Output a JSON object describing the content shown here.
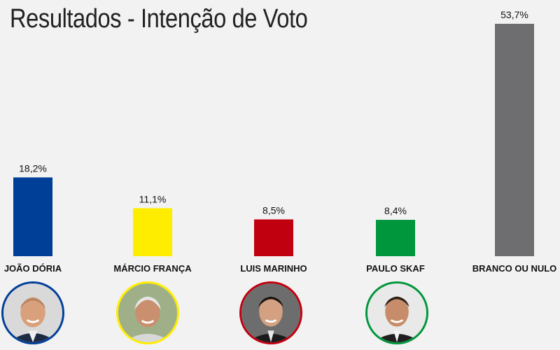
{
  "title": "Resultados - Intenção de Voto",
  "chart_data": {
    "type": "bar",
    "title": "Resultados - Intenção de Voto",
    "categories": [
      "JOÃO DÓRIA",
      "MÁRCIO FRANÇA",
      "LUIS MARINHO",
      "PAULO SKAF",
      "BRANCO OU NULO"
    ],
    "values": [
      18.2,
      11.1,
      8.5,
      8.4,
      53.7
    ],
    "value_labels": [
      "18,2%",
      "11,1%",
      "8,5%",
      "8,4%",
      "53,7%"
    ],
    "colors": [
      "#003f98",
      "#ffed00",
      "#c1000f",
      "#00963c",
      "#6e6e70"
    ],
    "unit": "%",
    "grid": false,
    "legend": "none"
  },
  "candidates": [
    {
      "name": "JOÃO DÓRIA",
      "ring_color": "#003f98"
    },
    {
      "name": "MÁRCIO FRANÇA",
      "ring_color": "#ffed00"
    },
    {
      "name": "LUIS MARINHO",
      "ring_color": "#c1000f"
    },
    {
      "name": "PAULO SKAF",
      "ring_color": "#00963c"
    }
  ]
}
